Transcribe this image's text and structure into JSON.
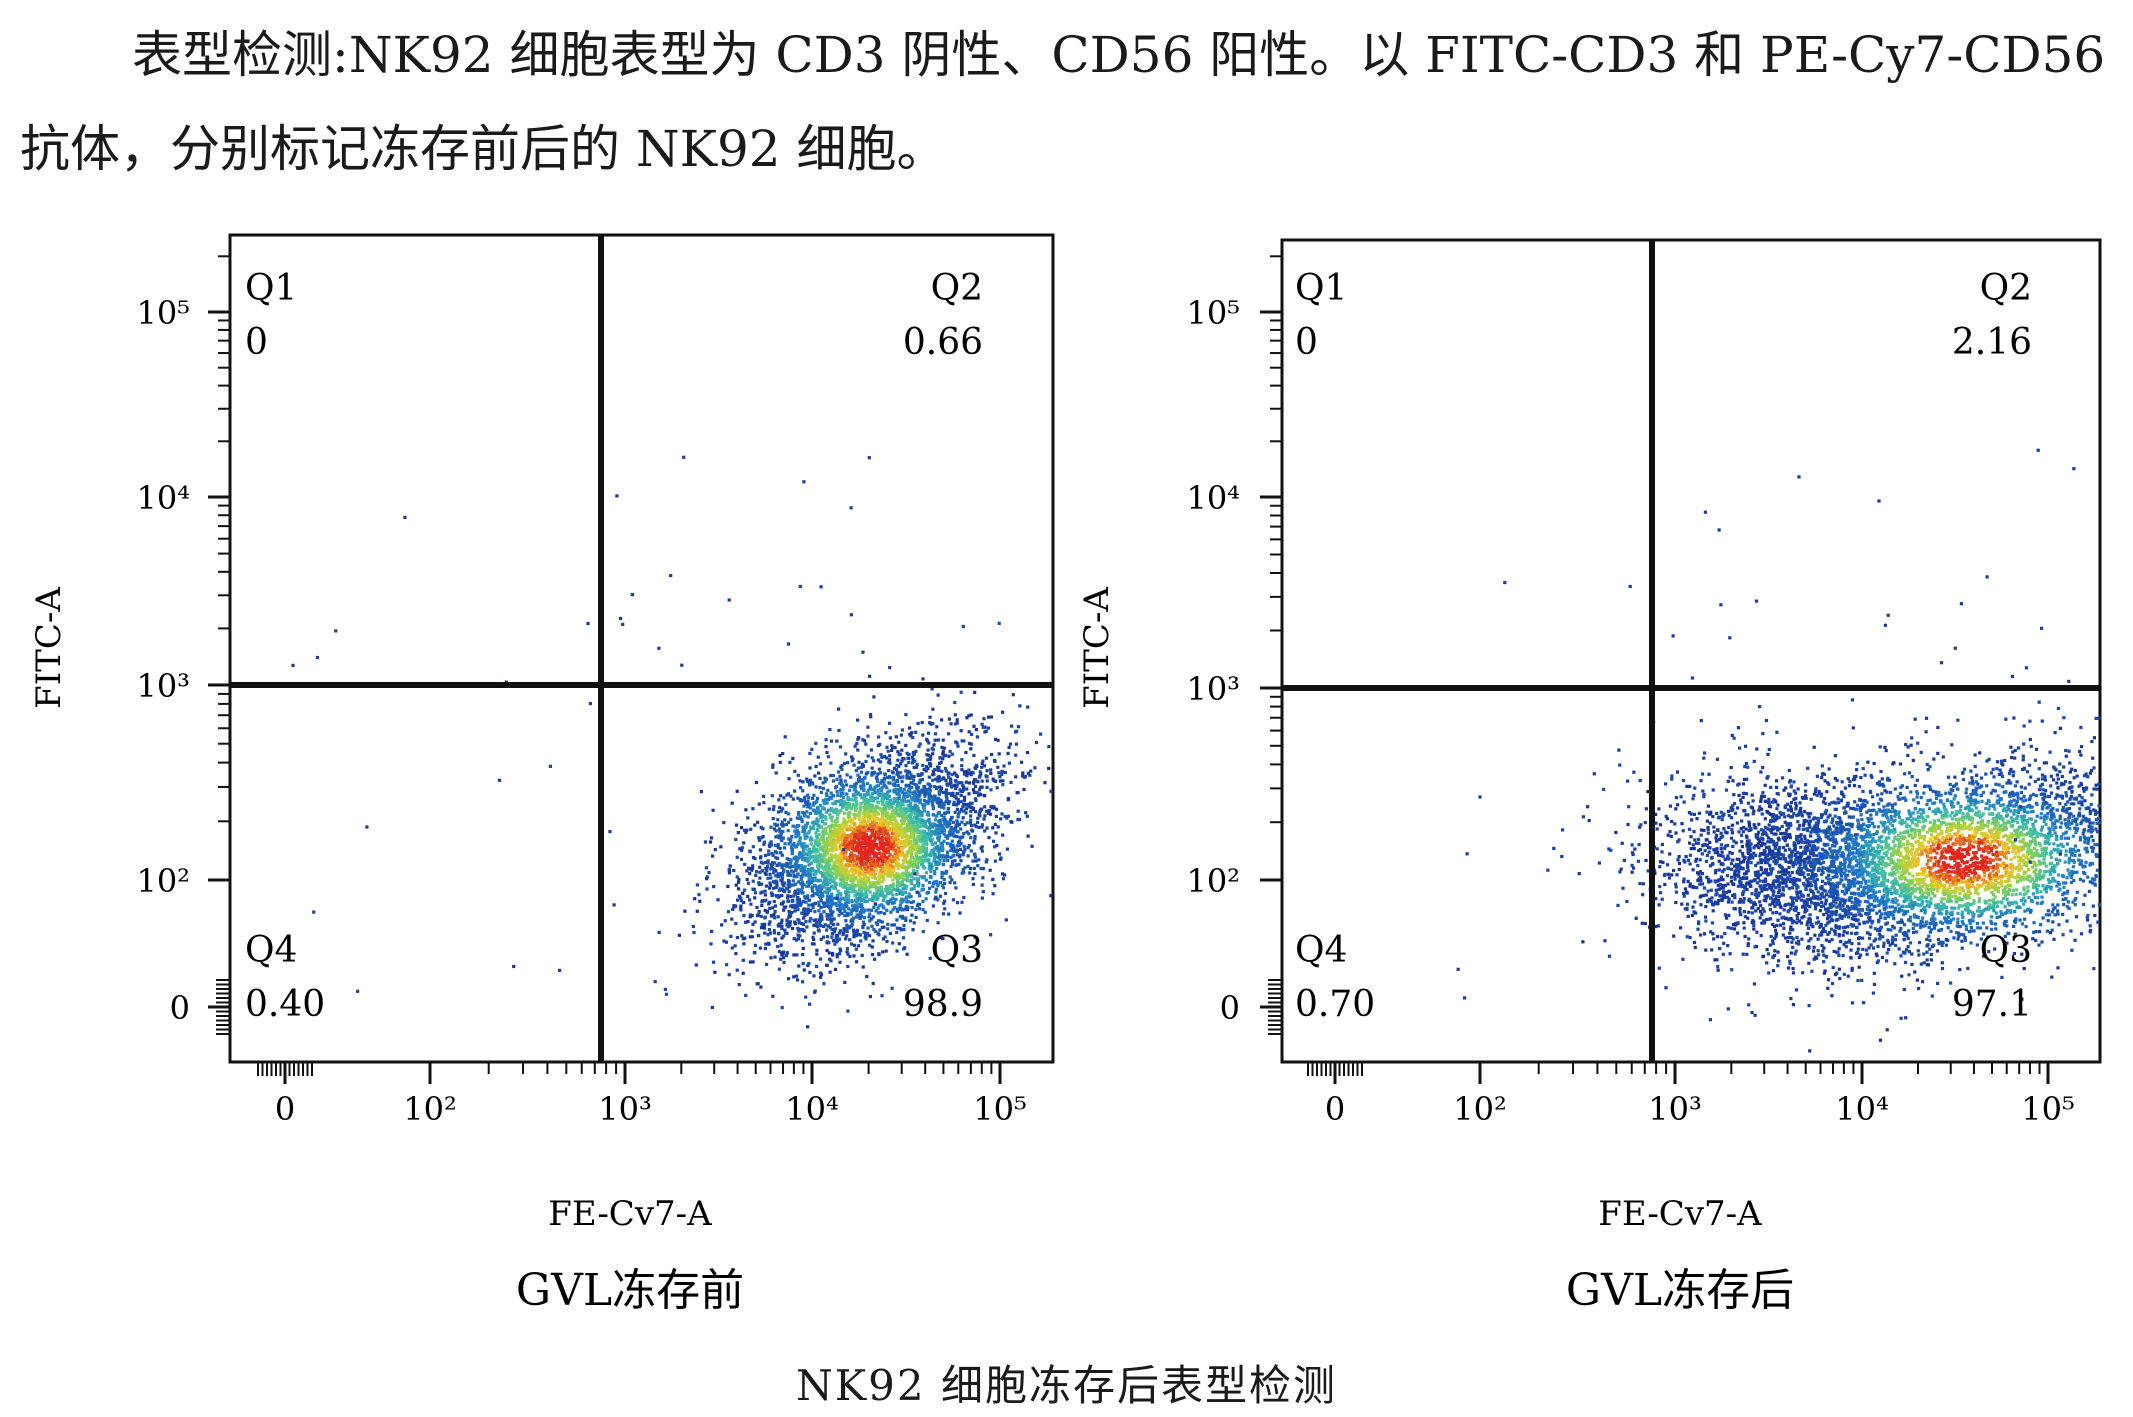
{
  "text": {
    "line1": "表型检测:NK92 细胞表型为 CD3 阴性、CD56 阳性。以 FITC-CD3 和 PE-Cy7-CD56",
    "line2": "抗体，分别标记冻存前后的 NK92 细胞。",
    "caption": "NK92 细胞冻存后表型检测"
  },
  "chart_data": [
    {
      "type": "scatter",
      "title": "GVL冻存前",
      "xlabel": "FE-Cv7-A",
      "ylabel": "FITC-A",
      "x_ticks": [
        "0",
        "10²",
        "10³",
        "10⁴",
        "10⁵"
      ],
      "y_ticks": [
        "0",
        "10²",
        "10³",
        "10⁴",
        "10⁵"
      ],
      "scale": "biexponential",
      "gate": {
        "x": 1000,
        "y": 1000
      },
      "quadrants": [
        {
          "name": "Q1",
          "value": "0"
        },
        {
          "name": "Q2",
          "value": "0.66"
        },
        {
          "name": "Q3",
          "value": "98.9"
        },
        {
          "name": "Q4",
          "value": "0.40"
        }
      ],
      "population": {
        "center_x": 20000,
        "center_y": 150,
        "n_events": 4500
      }
    },
    {
      "type": "scatter",
      "title": "GVL冻存后",
      "xlabel": "FE-Cv7-A",
      "ylabel": "FITC-A",
      "x_ticks": [
        "0",
        "10²",
        "10³",
        "10⁴",
        "10⁵"
      ],
      "y_ticks": [
        "0",
        "10²",
        "10³",
        "10⁴",
        "10⁵"
      ],
      "scale": "biexponential",
      "gate": {
        "x": 1000,
        "y": 1000
      },
      "quadrants": [
        {
          "name": "Q1",
          "value": "0"
        },
        {
          "name": "Q2",
          "value": "2.16"
        },
        {
          "name": "Q3",
          "value": "97.1"
        },
        {
          "name": "Q4",
          "value": "0.70"
        }
      ],
      "population": {
        "center_x": 35000,
        "center_y": 130,
        "n_events": 5500
      }
    }
  ]
}
